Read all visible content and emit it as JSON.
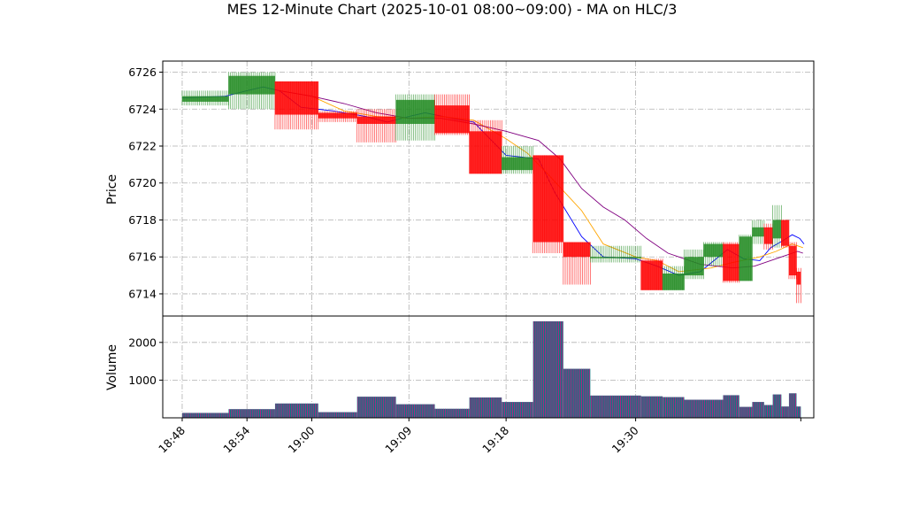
{
  "chart_data": {
    "type": "candlestick",
    "title": "MES 12-Minute Chart (2025-10-01 08:00~09:00) - MA on HLC/3",
    "price_panel": {
      "ylabel": "Price",
      "ylim": [
        6712.8,
        6726.6
      ],
      "yticks": [
        6714,
        6716,
        6718,
        6720,
        6722,
        6724,
        6726
      ],
      "grid": true
    },
    "volume_panel": {
      "ylabel": "Volume",
      "ylim": [
        0,
        2700
      ],
      "yticks": [
        1000,
        2000
      ],
      "grid": true
    },
    "x_axis": {
      "range_minutes": [
        -1.8,
        58.5
      ],
      "ticks": [
        {
          "minute": 0,
          "label": "18:48"
        },
        {
          "minute": 6,
          "label": "18:54"
        },
        {
          "minute": 12,
          "label": "19:00"
        },
        {
          "minute": 21,
          "label": "19:09"
        },
        {
          "minute": 30,
          "label": "19:18"
        },
        {
          "minute": 42,
          "label": "19:30"
        }
      ]
    },
    "bars": [
      {
        "start": 0.0,
        "end": 4.3,
        "open": 6724.4,
        "high": 6725.0,
        "low": 6724.2,
        "close": 6724.7,
        "volume": 130
      },
      {
        "start": 4.3,
        "end": 8.6,
        "open": 6724.8,
        "high": 6726.0,
        "low": 6724.0,
        "close": 6725.8,
        "volume": 230
      },
      {
        "start": 8.6,
        "end": 12.6,
        "open": 6725.5,
        "high": 6725.5,
        "low": 6722.9,
        "close": 6723.7,
        "volume": 380
      },
      {
        "start": 12.6,
        "end": 16.2,
        "open": 6723.8,
        "high": 6723.9,
        "low": 6723.3,
        "close": 6723.5,
        "volume": 150
      },
      {
        "start": 16.2,
        "end": 19.8,
        "open": 6723.6,
        "high": 6724.0,
        "low": 6722.2,
        "close": 6723.2,
        "volume": 560
      },
      {
        "start": 19.8,
        "end": 23.4,
        "open": 6723.2,
        "high": 6724.8,
        "low": 6722.3,
        "close": 6724.5,
        "volume": 360
      },
      {
        "start": 23.4,
        "end": 26.6,
        "open": 6724.2,
        "high": 6724.8,
        "low": 6722.6,
        "close": 6722.7,
        "volume": 240
      },
      {
        "start": 26.6,
        "end": 29.6,
        "open": 6722.8,
        "high": 6723.4,
        "low": 6720.5,
        "close": 6720.5,
        "volume": 540
      },
      {
        "start": 29.6,
        "end": 32.5,
        "open": 6720.7,
        "high": 6722.0,
        "low": 6720.5,
        "close": 6721.4,
        "volume": 420
      },
      {
        "start": 32.5,
        "end": 35.3,
        "open": 6721.5,
        "high": 6721.5,
        "low": 6716.2,
        "close": 6716.8,
        "volume": 2560
      },
      {
        "start": 35.3,
        "end": 37.8,
        "open": 6716.8,
        "high": 6716.8,
        "low": 6714.5,
        "close": 6716.0,
        "volume": 1300
      },
      {
        "start": 37.8,
        "end": 42.5,
        "open": 6716.0,
        "high": 6716.6,
        "low": 6715.7,
        "close": 6716.0,
        "volume": 590
      },
      {
        "start": 42.5,
        "end": 44.5,
        "open": 6715.8,
        "high": 6715.9,
        "low": 6714.2,
        "close": 6714.2,
        "volume": 570
      },
      {
        "start": 44.5,
        "end": 46.5,
        "open": 6714.2,
        "high": 6715.5,
        "low": 6714.2,
        "close": 6715.1,
        "volume": 550
      },
      {
        "start": 46.5,
        "end": 48.3,
        "open": 6715.0,
        "high": 6716.4,
        "low": 6714.8,
        "close": 6716.0,
        "volume": 480
      },
      {
        "start": 48.3,
        "end": 50.1,
        "open": 6716.0,
        "high": 6716.8,
        "low": 6715.5,
        "close": 6716.7,
        "volume": 480
      },
      {
        "start": 50.1,
        "end": 51.6,
        "open": 6716.7,
        "high": 6716.8,
        "low": 6714.6,
        "close": 6714.7,
        "volume": 600
      },
      {
        "start": 51.6,
        "end": 52.8,
        "open": 6714.7,
        "high": 6717.2,
        "low": 6714.7,
        "close": 6717.1,
        "volume": 290
      },
      {
        "start": 52.8,
        "end": 53.9,
        "open": 6717.1,
        "high": 6718.0,
        "low": 6716.7,
        "close": 6717.6,
        "volume": 420
      },
      {
        "start": 53.9,
        "end": 54.7,
        "open": 6717.6,
        "high": 6717.8,
        "low": 6716.4,
        "close": 6716.7,
        "volume": 340
      },
      {
        "start": 54.7,
        "end": 55.5,
        "open": 6717.0,
        "high": 6718.8,
        "low": 6716.5,
        "close": 6718.0,
        "volume": 620
      },
      {
        "start": 55.5,
        "end": 56.2,
        "open": 6718.0,
        "high": 6718.0,
        "low": 6716.5,
        "close": 6716.6,
        "volume": 300
      },
      {
        "start": 56.2,
        "end": 56.9,
        "open": 6716.6,
        "high": 6716.8,
        "low": 6714.8,
        "close": 6715.0,
        "volume": 650
      },
      {
        "start": 56.9,
        "end": 57.3,
        "open": 6715.2,
        "high": 6715.4,
        "low": 6713.5,
        "close": 6714.5,
        "volume": 300
      }
    ],
    "moving_averages": [
      {
        "color": "#0000ff",
        "points": [
          [
            0,
            6724.6
          ],
          [
            4,
            6724.7
          ],
          [
            6,
            6725.0
          ],
          [
            7.5,
            6725.2
          ],
          [
            9,
            6725.0
          ],
          [
            11,
            6724.1
          ],
          [
            14,
            6723.9
          ],
          [
            17,
            6723.6
          ],
          [
            19,
            6723.3
          ],
          [
            21,
            6723.6
          ],
          [
            22.5,
            6723.8
          ],
          [
            25,
            6723.5
          ],
          [
            27,
            6723.3
          ],
          [
            30,
            6721.5
          ],
          [
            33,
            6721.3
          ],
          [
            34.5,
            6719.5
          ],
          [
            37,
            6717.1
          ],
          [
            39,
            6716.0
          ],
          [
            42,
            6715.9
          ],
          [
            44,
            6715.5
          ],
          [
            46,
            6715.0
          ],
          [
            48,
            6715.2
          ],
          [
            50.5,
            6716.4
          ],
          [
            52,
            6715.9
          ],
          [
            53.5,
            6715.8
          ],
          [
            54.5,
            6716.5
          ],
          [
            55.7,
            6716.9
          ],
          [
            56.5,
            6717.2
          ],
          [
            57.2,
            6717.0
          ],
          [
            57.6,
            6716.7
          ]
        ]
      },
      {
        "color": "#ffa500",
        "points": [
          [
            9,
            6725.0
          ],
          [
            12,
            6724.7
          ],
          [
            15,
            6723.9
          ],
          [
            18,
            6723.6
          ],
          [
            21,
            6723.5
          ],
          [
            24,
            6723.6
          ],
          [
            27,
            6723.4
          ],
          [
            30,
            6722.4
          ],
          [
            32,
            6721.6
          ],
          [
            34,
            6720.4
          ],
          [
            37,
            6718.5
          ],
          [
            39,
            6716.7
          ],
          [
            42,
            6716.0
          ],
          [
            44,
            6715.8
          ],
          [
            46,
            6715.2
          ],
          [
            49,
            6715.4
          ],
          [
            51,
            6715.7
          ],
          [
            53.5,
            6716.0
          ],
          [
            55,
            6716.3
          ],
          [
            56.5,
            6716.7
          ],
          [
            57.5,
            6716.5
          ]
        ]
      },
      {
        "color": "#800080",
        "points": [
          [
            9,
            6725.0
          ],
          [
            12,
            6724.7
          ],
          [
            15,
            6724.3
          ],
          [
            18,
            6723.8
          ],
          [
            21,
            6723.5
          ],
          [
            24,
            6723.5
          ],
          [
            27,
            6723.2
          ],
          [
            30,
            6722.8
          ],
          [
            33,
            6722.3
          ],
          [
            35,
            6721.3
          ],
          [
            37,
            6719.7
          ],
          [
            39,
            6718.7
          ],
          [
            41,
            6718.0
          ],
          [
            43,
            6717.0
          ],
          [
            45,
            6716.2
          ],
          [
            48,
            6715.6
          ],
          [
            51,
            6715.4
          ],
          [
            53,
            6715.5
          ],
          [
            55,
            6715.9
          ],
          [
            57,
            6716.3
          ],
          [
            57.5,
            6716.2
          ]
        ]
      }
    ],
    "colors": {
      "up": "#228b22",
      "down": "#ff0000",
      "volume_a": "#008080",
      "volume_b": "#c71585",
      "grid": "#b0b0b0"
    }
  }
}
